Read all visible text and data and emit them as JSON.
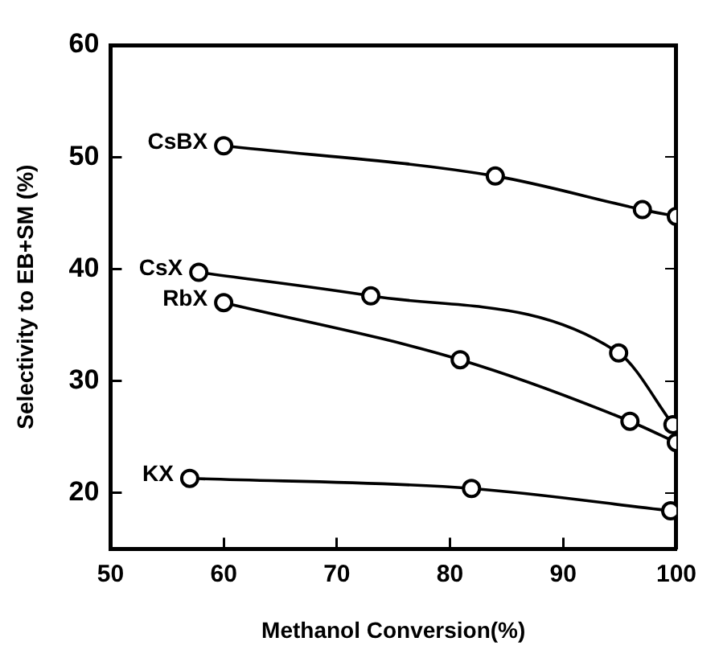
{
  "chart_data": {
    "type": "line",
    "xlabel": "Methanol Conversion(%)",
    "ylabel": "Selectivity to EB+SM (%)",
    "xlim": [
      50,
      100
    ],
    "xticks": [
      50,
      60,
      70,
      80,
      90,
      100
    ],
    "ylim": [
      15,
      60
    ],
    "yticks": [
      20,
      30,
      40,
      50,
      60
    ],
    "grid": false,
    "legend": false,
    "marker": "circle",
    "line_style": "solid",
    "series": [
      {
        "name": "CsBX",
        "color": "#000000",
        "x": [
          60,
          84,
          97,
          100
        ],
        "values": [
          51.0,
          48.3,
          45.3,
          44.7
        ]
      },
      {
        "name": "CsX",
        "color": "#000000",
        "x": [
          57.8,
          73,
          94.9,
          99.7
        ],
        "values": [
          39.7,
          37.6,
          32.5,
          26.1
        ]
      },
      {
        "name": "RbX",
        "color": "#000000",
        "x": [
          60,
          80.9,
          95.9,
          100
        ],
        "values": [
          37.0,
          31.9,
          26.4,
          24.5
        ]
      },
      {
        "name": "KX",
        "color": "#000000",
        "x": [
          57,
          81.9,
          99.5
        ],
        "values": [
          21.3,
          20.4,
          18.4
        ]
      }
    ]
  }
}
